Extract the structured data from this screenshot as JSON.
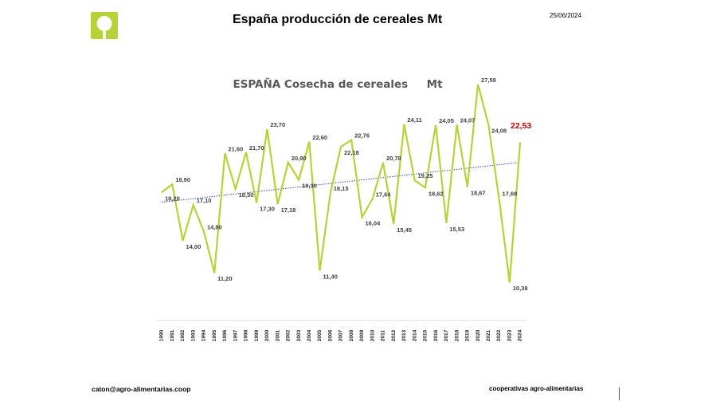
{
  "header": {
    "title": "España producción de cereales Mt",
    "date": "25/06/2024",
    "logo_icon": "green-circle-logo-icon"
  },
  "footer": {
    "email": "caton@agro-alimentarias.coop",
    "organization": "cooperativas agro-alimentarias"
  },
  "colors": {
    "series_line": "#b5d335",
    "trend_line": "#2e4f9e",
    "highlight_label": "#c00000",
    "logo_green": "#b5d335",
    "title_text": "#595959"
  },
  "chart_data": {
    "type": "line",
    "title": "ESPAÑA Cosecha de cereales     Mt",
    "xlabel": "",
    "ylabel": "",
    "x": [
      "1990",
      "1991",
      "1992",
      "1993",
      "1994",
      "1995",
      "1996",
      "1997",
      "1998",
      "1999",
      "2000",
      "2001",
      "2002",
      "2003",
      "2004",
      "2005",
      "2006",
      "2007",
      "2008",
      "2009",
      "2010",
      "2011",
      "2012",
      "2013",
      "2014",
      "2015",
      "2016",
      "2017",
      "2018",
      "2019",
      "2020",
      "2021",
      "2022",
      "2023",
      "2024"
    ],
    "series": [
      {
        "values": [
          18.2,
          18.9,
          14.0,
          17.1,
          14.8,
          11.2,
          21.6,
          18.5,
          21.7,
          17.3,
          23.7,
          17.18,
          20.8,
          19.3,
          22.6,
          11.4,
          18.15,
          22.18,
          22.76,
          16.04,
          17.64,
          20.78,
          15.45,
          24.11,
          19.25,
          18.62,
          24.05,
          15.53,
          24.07,
          18.67,
          27.59,
          24.08,
          17.69,
          10.38,
          22.53
        ],
        "labels": [
          "18,20",
          "18,90",
          "14,00",
          "17,10",
          "14,80",
          "11,20",
          "21,60",
          "18,50",
          "21,70",
          "17,30",
          "23,70",
          "17,18",
          "20,80",
          "19,30",
          "22,60",
          "11,40",
          "18,15",
          "22,18",
          "22,76",
          "16,04",
          "17,64",
          "20,78",
          "15,45",
          "24,11",
          "19,25",
          "18,62",
          "24,05",
          "15,53",
          "24,07",
          "18,67",
          "27,59",
          "24,08",
          "17,69",
          "10,38",
          "22,53"
        ]
      }
    ],
    "trendline": {
      "type": "linear",
      "style": "dotted"
    },
    "highlight_index": 34,
    "grid": false,
    "legend": "none"
  }
}
